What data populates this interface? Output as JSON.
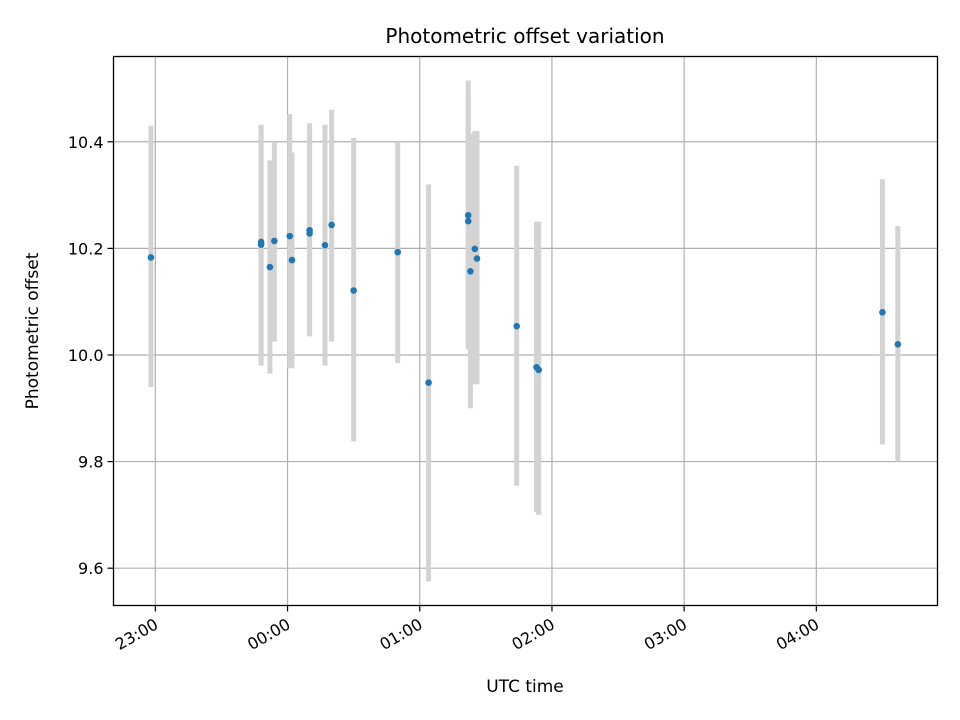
{
  "chart_data": {
    "type": "scatter",
    "title": "Photometric offset variation",
    "xlabel": "UTC time",
    "ylabel": "Photometric offset",
    "x_ticks": [
      "23:00",
      "00:00",
      "01:00",
      "02:00",
      "03:00",
      "04:00"
    ],
    "y_ticks": [
      "9.6",
      "9.8",
      "10.0",
      "10.2",
      "10.4"
    ],
    "xlim": [
      "22:41",
      "04:55"
    ],
    "ylim": [
      9.53,
      10.56
    ],
    "grid": true,
    "colors": {
      "point": "#1f77b4",
      "errorbar": "#d3d3d3",
      "grid": "#b0b0b0"
    },
    "points": [
      {
        "x": "22:58",
        "y": 10.183,
        "ylo": 9.94,
        "yhi": 10.43
      },
      {
        "x": "23:48",
        "y": 10.212,
        "ylo": 9.98,
        "yhi": 10.432
      },
      {
        "x": "23:48",
        "y": 10.207,
        "ylo": 9.99,
        "yhi": 10.42
      },
      {
        "x": "23:52",
        "y": 10.165,
        "ylo": 9.965,
        "yhi": 10.365
      },
      {
        "x": "23:54",
        "y": 10.214,
        "ylo": 10.025,
        "yhi": 10.4
      },
      {
        "x": "00:01",
        "y": 10.223,
        "ylo": 9.975,
        "yhi": 10.452
      },
      {
        "x": "00:02",
        "y": 10.178,
        "ylo": 9.975,
        "yhi": 10.38
      },
      {
        "x": "00:10",
        "y": 10.234,
        "ylo": 10.035,
        "yhi": 10.435
      },
      {
        "x": "00:10",
        "y": 10.228,
        "ylo": 10.04,
        "yhi": 10.42
      },
      {
        "x": "00:17",
        "y": 10.206,
        "ylo": 9.98,
        "yhi": 10.432
      },
      {
        "x": "00:20",
        "y": 10.244,
        "ylo": 10.025,
        "yhi": 10.46
      },
      {
        "x": "00:30",
        "y": 10.121,
        "ylo": 9.838,
        "yhi": 10.407
      },
      {
        "x": "00:50",
        "y": 10.193,
        "ylo": 9.985,
        "yhi": 10.4
      },
      {
        "x": "01:04",
        "y": 9.948,
        "ylo": 9.575,
        "yhi": 10.32
      },
      {
        "x": "01:22",
        "y": 10.262,
        "ylo": 10.01,
        "yhi": 10.515
      },
      {
        "x": "01:22",
        "y": 10.251,
        "ylo": 10.015,
        "yhi": 10.488
      },
      {
        "x": "01:23",
        "y": 10.157,
        "ylo": 9.9,
        "yhi": 10.415
      },
      {
        "x": "01:25",
        "y": 10.199,
        "ylo": 9.945,
        "yhi": 10.42
      },
      {
        "x": "01:26",
        "y": 10.181,
        "ylo": 9.945,
        "yhi": 10.42
      },
      {
        "x": "01:44",
        "y": 10.054,
        "ylo": 9.755,
        "yhi": 10.355
      },
      {
        "x": "01:53",
        "y": 9.977,
        "ylo": 9.705,
        "yhi": 10.25
      },
      {
        "x": "01:54",
        "y": 9.972,
        "ylo": 9.7,
        "yhi": 10.25
      },
      {
        "x": "04:30",
        "y": 10.08,
        "ylo": 9.832,
        "yhi": 10.33
      },
      {
        "x": "04:37",
        "y": 10.02,
        "ylo": 9.8,
        "yhi": 10.242
      }
    ]
  }
}
